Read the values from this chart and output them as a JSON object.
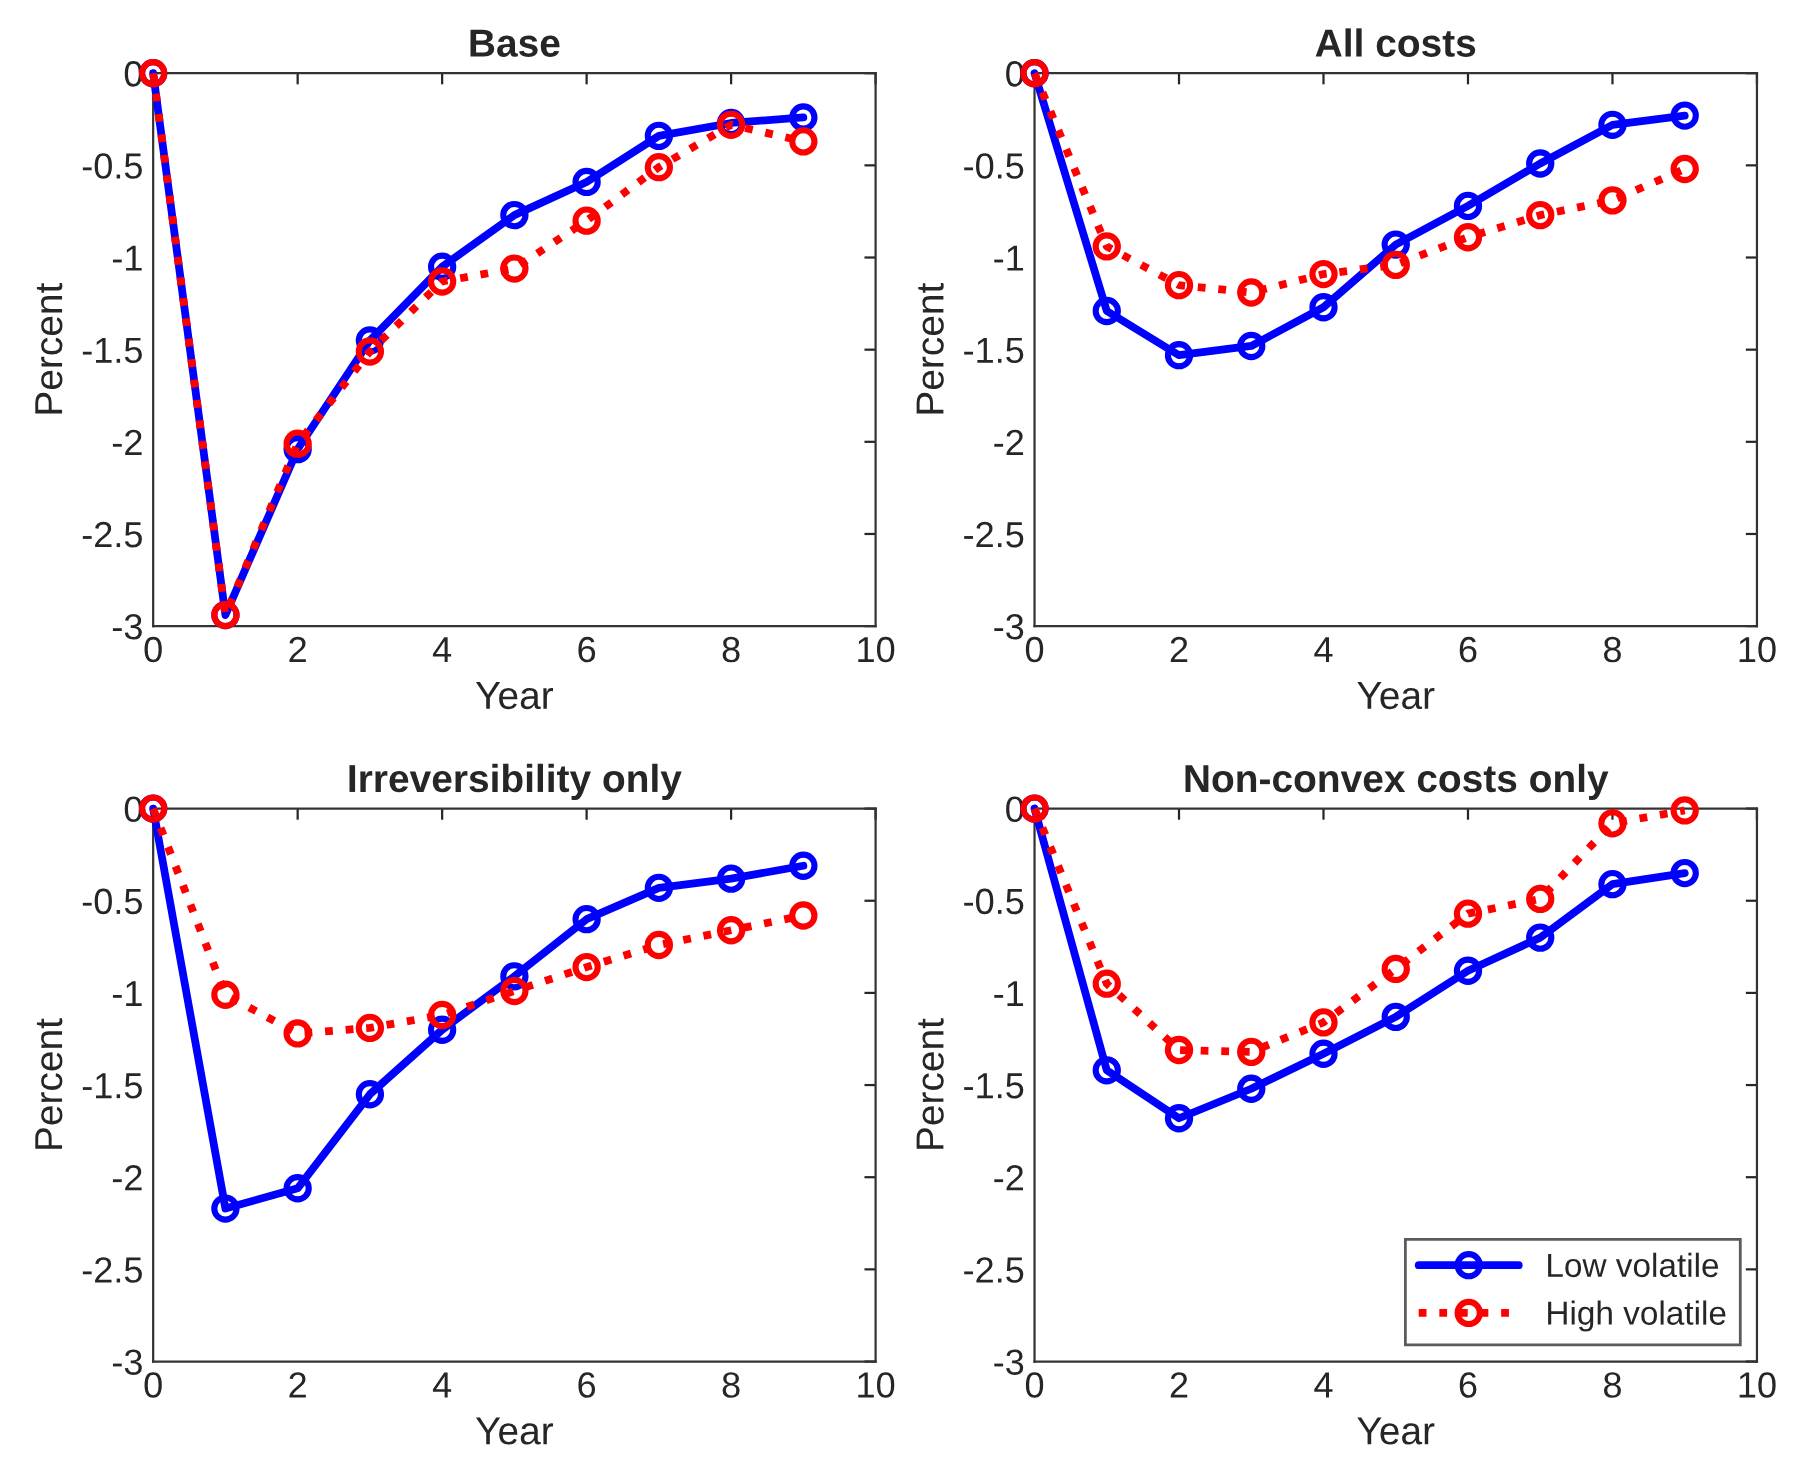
{
  "chart_data": [
    {
      "type": "line",
      "title": "Base",
      "xlabel": "Year",
      "ylabel": "Percent",
      "xlim": [
        0,
        10
      ],
      "xticks": [
        0,
        2,
        4,
        6,
        8,
        10
      ],
      "ylim": [
        -3,
        0
      ],
      "yticks": [
        -3,
        -2.5,
        -2,
        -1.5,
        -1,
        -0.5,
        0
      ],
      "x": [
        0,
        1,
        2,
        3,
        4,
        5,
        6,
        7,
        8,
        9
      ],
      "marker": "circle",
      "grid": false,
      "legend": false,
      "series": [
        {
          "color": "#0000ff",
          "line_style": "solid",
          "values": [
            0,
            -2.94,
            -2.04,
            -1.45,
            -1.05,
            -0.77,
            -0.59,
            -0.34,
            -0.27,
            -0.24
          ]
        },
        {
          "color": "#ff0000",
          "line_style": "dotted",
          "values": [
            0,
            -2.94,
            -2.01,
            -1.51,
            -1.13,
            -1.06,
            -0.8,
            -0.51,
            -0.28,
            -0.37
          ]
        }
      ]
    },
    {
      "type": "line",
      "title": "All costs",
      "xlabel": "Year",
      "ylabel": "Percent",
      "xlim": [
        0,
        10
      ],
      "xticks": [
        0,
        2,
        4,
        6,
        8,
        10
      ],
      "ylim": [
        -3,
        0
      ],
      "yticks": [
        -3,
        -2.5,
        -2,
        -1.5,
        -1,
        -0.5,
        0
      ],
      "x": [
        0,
        1,
        2,
        3,
        4,
        5,
        6,
        7,
        8,
        9
      ],
      "marker": "circle",
      "grid": false,
      "legend": false,
      "series": [
        {
          "color": "#0000ff",
          "line_style": "solid",
          "values": [
            0,
            -1.29,
            -1.53,
            -1.48,
            -1.27,
            -0.93,
            -0.72,
            -0.49,
            -0.28,
            -0.23
          ]
        },
        {
          "color": "#ff0000",
          "line_style": "dotted",
          "values": [
            0,
            -0.94,
            -1.15,
            -1.19,
            -1.09,
            -1.04,
            -0.89,
            -0.77,
            -0.69,
            -0.52
          ]
        }
      ]
    },
    {
      "type": "line",
      "title": "Irreversibility only",
      "xlabel": "Year",
      "ylabel": "Percent",
      "xlim": [
        0,
        10
      ],
      "xticks": [
        0,
        2,
        4,
        6,
        8,
        10
      ],
      "ylim": [
        -3,
        0
      ],
      "yticks": [
        -3,
        -2.5,
        -2,
        -1.5,
        -1,
        -0.5,
        0
      ],
      "x": [
        0,
        1,
        2,
        3,
        4,
        5,
        6,
        7,
        8,
        9
      ],
      "marker": "circle",
      "grid": false,
      "legend": false,
      "series": [
        {
          "color": "#0000ff",
          "line_style": "solid",
          "values": [
            0,
            -2.17,
            -2.06,
            -1.55,
            -1.2,
            -0.91,
            -0.6,
            -0.43,
            -0.38,
            -0.31
          ]
        },
        {
          "color": "#ff0000",
          "line_style": "dotted",
          "values": [
            0,
            -1.01,
            -1.22,
            -1.19,
            -1.12,
            -0.99,
            -0.86,
            -0.74,
            -0.66,
            -0.58
          ]
        }
      ]
    },
    {
      "type": "line",
      "title": "Non-convex costs only",
      "xlabel": "Year",
      "ylabel": "Percent",
      "xlim": [
        0,
        10
      ],
      "xticks": [
        0,
        2,
        4,
        6,
        8,
        10
      ],
      "ylim": [
        -3,
        0
      ],
      "yticks": [
        -3,
        -2.5,
        -2,
        -1.5,
        -1,
        -0.5,
        0
      ],
      "x": [
        0,
        1,
        2,
        3,
        4,
        5,
        6,
        7,
        8,
        9
      ],
      "marker": "circle",
      "grid": false,
      "legend": "bottom right",
      "series": [
        {
          "name": "Low volatile",
          "color": "#0000ff",
          "line_style": "solid",
          "values": [
            0,
            -1.42,
            -1.68,
            -1.52,
            -1.33,
            -1.13,
            -0.88,
            -0.7,
            -0.41,
            -0.35
          ]
        },
        {
          "name": "High volatile",
          "color": "#ff0000",
          "line_style": "dotted",
          "values": [
            0,
            -0.95,
            -1.31,
            -1.32,
            -1.16,
            -0.87,
            -0.57,
            -0.49,
            -0.08,
            -0.01
          ]
        }
      ]
    }
  ]
}
